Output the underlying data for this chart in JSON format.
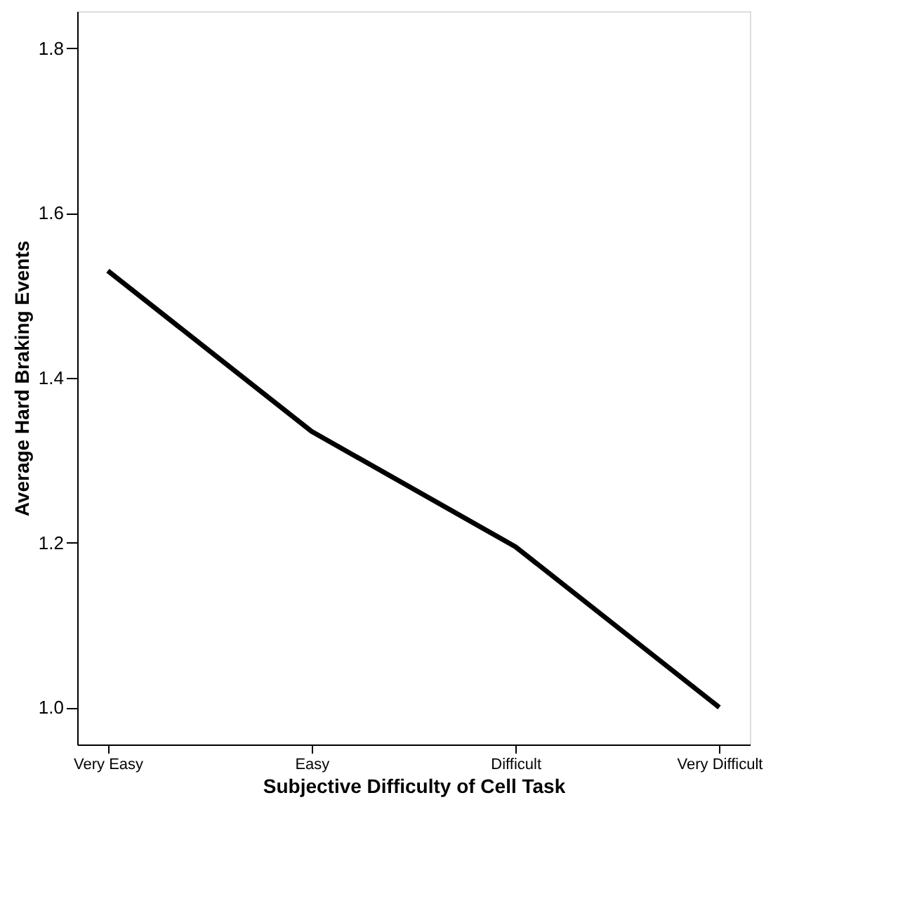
{
  "chart_data": {
    "type": "line",
    "xlabel": "Subjective Difficulty of Cell Task",
    "ylabel": "Average Hard Braking Events",
    "categories": [
      "Very Easy",
      "Easy",
      "Difficult",
      "Very Difficult"
    ],
    "series": [
      {
        "color": "#000000",
        "values": [
          1.53,
          1.335,
          1.195,
          1.0
        ]
      }
    ],
    "ylim": [
      0.955,
      1.845
    ],
    "yticks": [
      {
        "value": 1.0,
        "label": "1.0"
      },
      {
        "value": 1.2,
        "label": "1.2"
      },
      {
        "value": 1.4,
        "label": "1.4"
      },
      {
        "value": 1.6,
        "label": "1.6"
      },
      {
        "value": 1.8,
        "label": "1.8"
      }
    ],
    "grid": false,
    "marker": "none",
    "line_style": "solid"
  }
}
